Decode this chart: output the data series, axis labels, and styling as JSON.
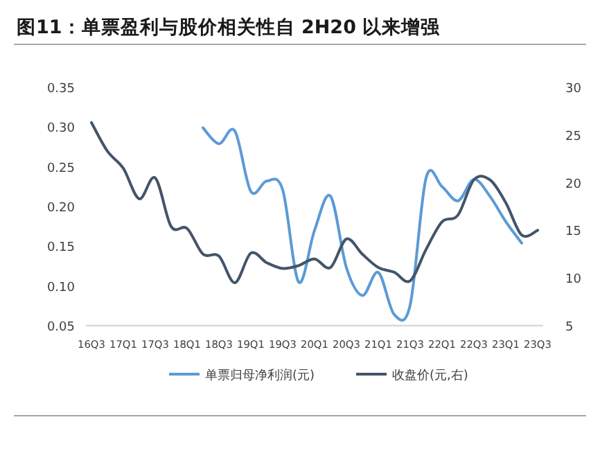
{
  "chart_data": {
    "type": "line",
    "title": "图11：单票盈利与股价相关性自 2H20 以来增强",
    "categories": [
      "16Q3",
      null,
      "17Q1",
      null,
      "17Q3",
      null,
      "18Q1",
      null,
      "18Q3",
      null,
      "19Q1",
      null,
      "19Q3",
      null,
      "20Q1",
      null,
      "20Q3",
      null,
      "21Q1",
      null,
      "21Q3",
      null,
      "22Q1",
      null,
      "22Q3",
      null,
      "23Q1",
      null,
      "23Q3"
    ],
    "series": [
      {
        "name": "单票归母净利润(元)",
        "color": "#5b9bd5",
        "values": [
          null,
          null,
          null,
          null,
          null,
          null,
          null,
          0.299,
          0.279,
          0.295,
          0.219,
          0.232,
          0.221,
          0.105,
          0.17,
          0.213,
          0.123,
          0.088,
          0.117,
          0.064,
          0.076,
          0.236,
          0.225,
          0.207,
          0.234,
          0.213,
          0.181,
          0.154,
          null
        ]
      },
      {
        "name": "收盘价(元,右)",
        "color": "#44546a",
        "axis": "y2",
        "values": [
          26.3,
          23.3,
          21.5,
          18.3,
          20.5,
          15.4,
          15.2,
          12.5,
          12.3,
          9.5,
          12.6,
          11.6,
          11.0,
          11.3,
          12.0,
          11.1,
          14.1,
          12.5,
          11.1,
          10.6,
          9.7,
          13.0,
          15.9,
          16.6,
          20.3,
          20.3,
          17.9,
          14.5,
          15.0
        ]
      }
    ],
    "ylim": [
      0.05,
      0.35
    ],
    "yticks": [
      {
        "value": 0.05,
        "label": "0.05"
      },
      {
        "value": 0.1,
        "label": "0.10"
      },
      {
        "value": 0.15,
        "label": "0.15"
      },
      {
        "value": 0.2,
        "label": "0.20"
      },
      {
        "value": 0.25,
        "label": "0.25"
      },
      {
        "value": 0.3,
        "label": "0.30"
      },
      {
        "value": 0.35,
        "label": "0.35"
      }
    ],
    "y2lim": [
      5,
      30
    ],
    "y2ticks": [
      5,
      10,
      15,
      20,
      25,
      30
    ],
    "legend": "bottom",
    "line_style": "solid",
    "marker": "none"
  }
}
